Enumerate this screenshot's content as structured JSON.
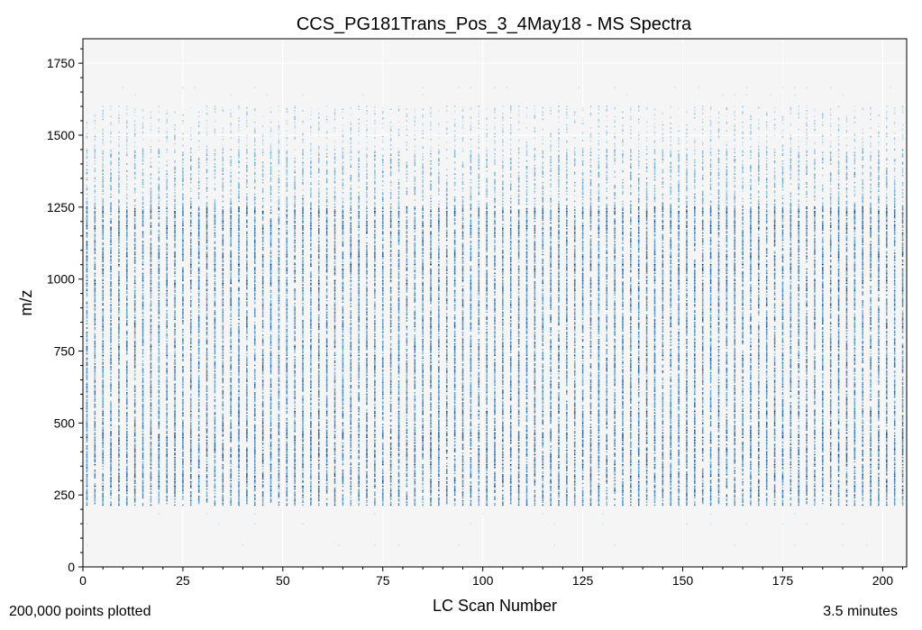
{
  "chart_data": {
    "type": "scatter",
    "title": "CCS_PG181Trans_Pos_3_4May18 - MS Spectra",
    "xlabel": "LC Scan Number",
    "ylabel": "m/z",
    "xlim": [
      0,
      206
    ],
    "ylim": [
      0,
      1835
    ],
    "xticks": [
      0,
      25,
      50,
      75,
      100,
      125,
      150,
      175,
      200
    ],
    "yticks": [
      0,
      250,
      500,
      750,
      1000,
      1250,
      1500,
      1750
    ],
    "grid": true,
    "legend": "none",
    "colormap": "blues",
    "colors": {
      "plot_background": "#f5f5f5",
      "light": "#dbe9f6",
      "medium": "#6aaed6",
      "dark": "#08306b"
    },
    "scan_range": [
      1,
      206
    ],
    "mz_range": [
      75,
      1665
    ],
    "dense_mz_bands": [
      {
        "from": 215,
        "to": 385,
        "intensity": "high"
      },
      {
        "from": 390,
        "to": 1250,
        "intensity": "high"
      },
      {
        "from": 1250,
        "to": 1450,
        "intensity": "medium"
      },
      {
        "from": 1450,
        "to": 1600,
        "intensity": "low"
      }
    ],
    "sparse_mz_points": [
      75,
      150,
      185,
      1640,
      1665
    ]
  },
  "footer": {
    "points_plotted": "200,000 points plotted",
    "duration": "3.5 minutes"
  }
}
